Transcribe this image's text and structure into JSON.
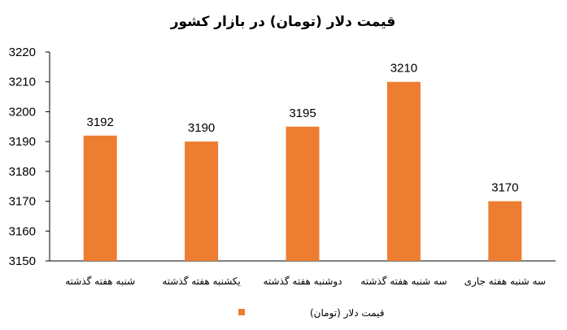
{
  "colors": {
    "bar": "#ED7D31",
    "axis": "#000000",
    "background": "#FFFFFF"
  },
  "chart_data": {
    "type": "bar",
    "title": "قیمت دلار (تومان) در بازار کشور",
    "categories": [
      "شنبه هفته گذشته",
      "یکشنبه هفته گذشته",
      "دوشنبه هفته گذشته",
      "سه شنبه هفته گذشته",
      "سه شنبه هفته جاری"
    ],
    "series": [
      {
        "name": "قیمت دلار (تومان)",
        "values": [
          3192,
          3190,
          3195,
          3210,
          3170
        ]
      }
    ],
    "data_labels": [
      "3192",
      "3190",
      "3195",
      "3210",
      "3170"
    ],
    "ylim": [
      3150,
      3220
    ],
    "yticks": [
      3150,
      3160,
      3170,
      3180,
      3190,
      3200,
      3210,
      3220
    ],
    "ytick_labels": [
      "3150",
      "3160",
      "3170",
      "3180",
      "3190",
      "3200",
      "3210",
      "3220"
    ],
    "grid": false,
    "legend_position": "bottom"
  }
}
